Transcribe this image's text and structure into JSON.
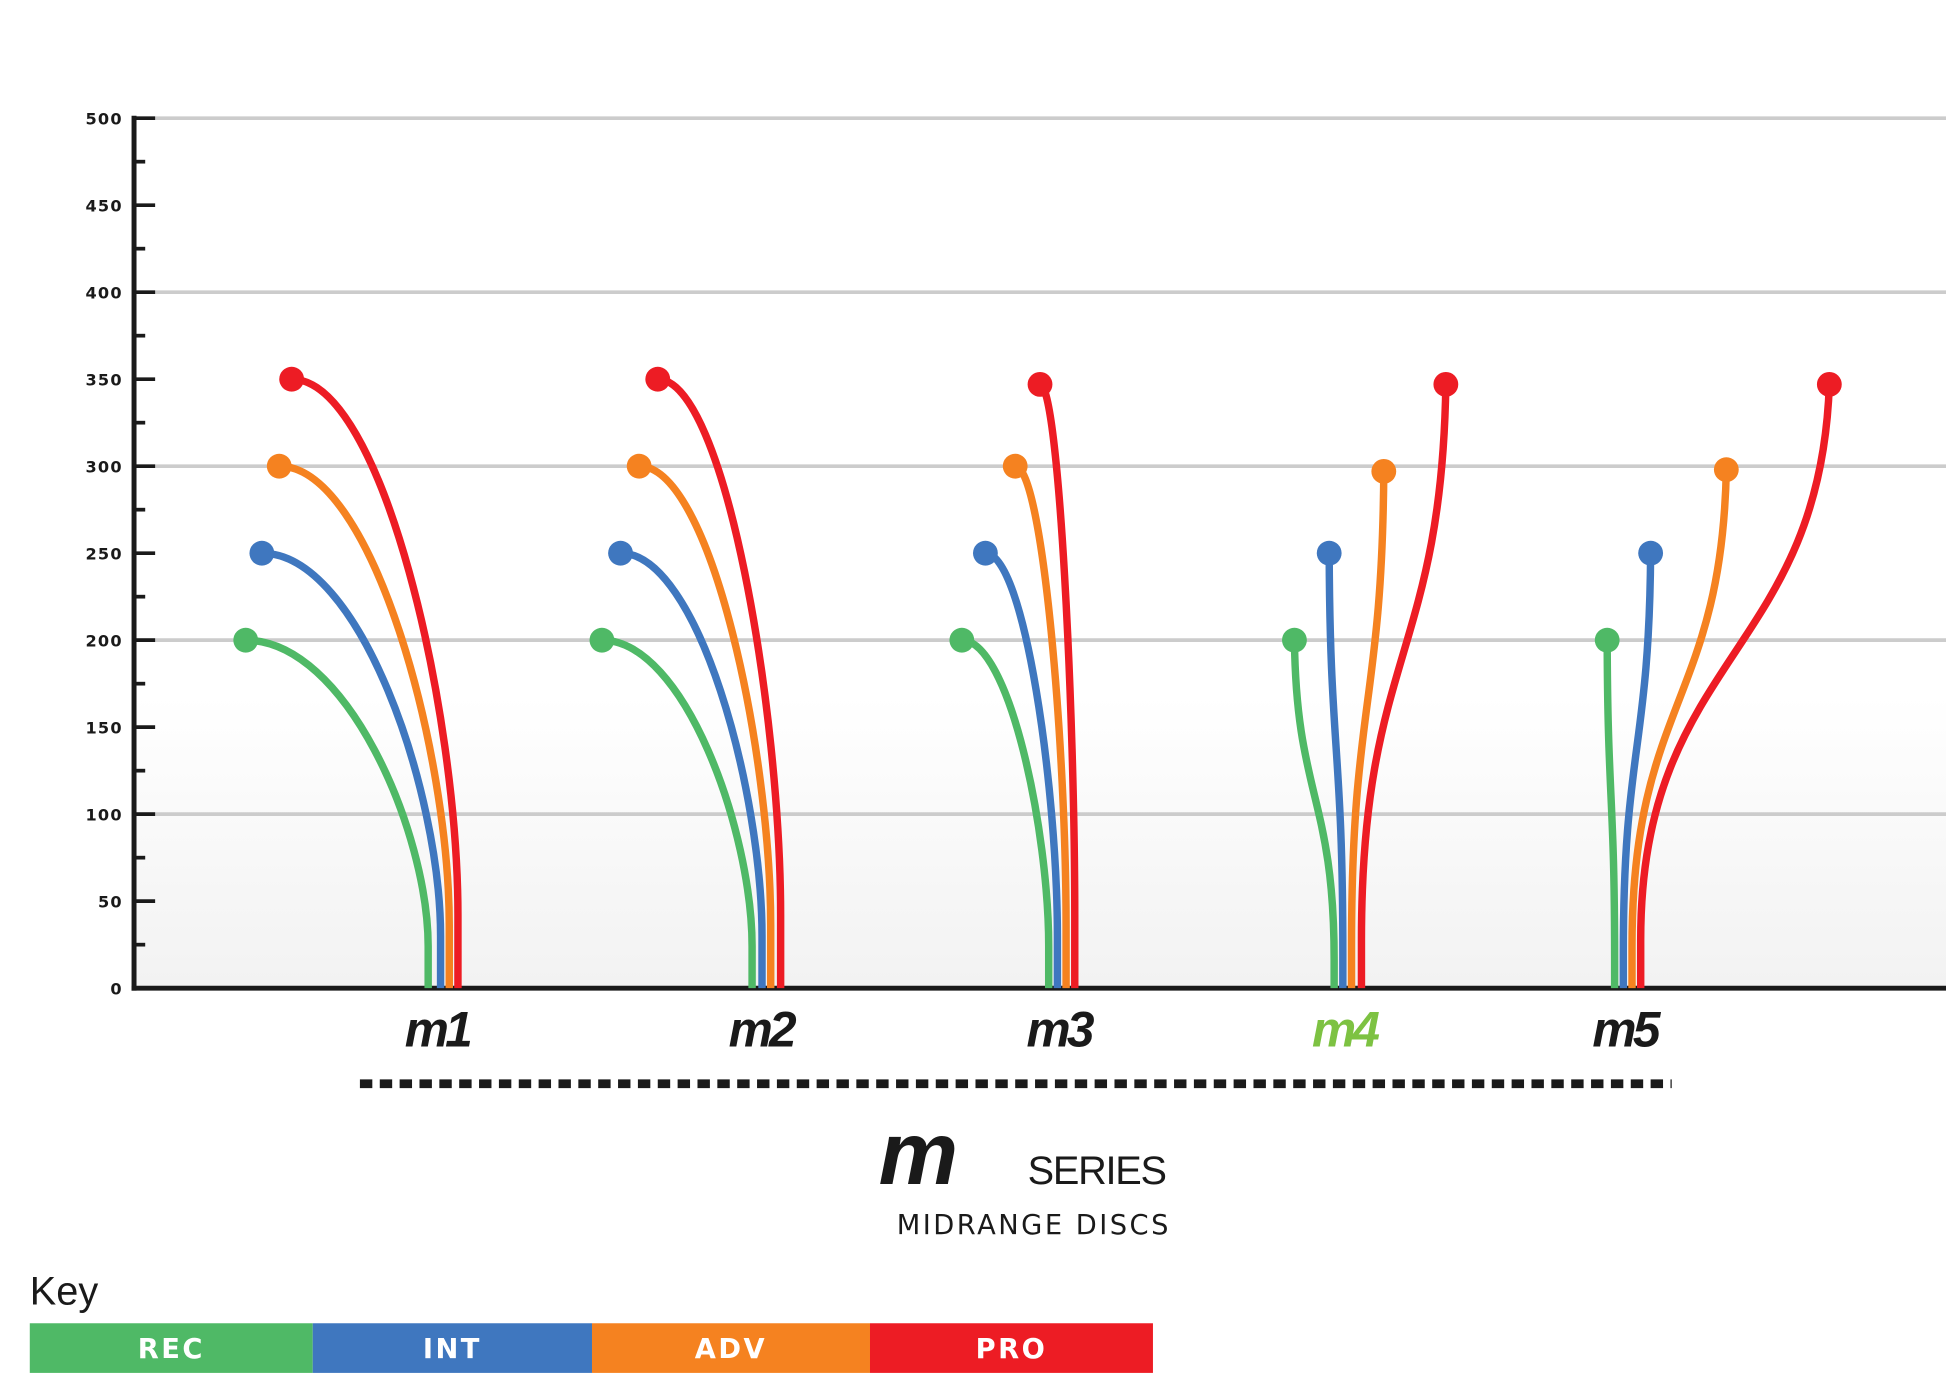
{
  "chart_data": {
    "type": "line",
    "title": "",
    "ylabel": "",
    "xlabel": "",
    "ylim": [
      0,
      500
    ],
    "y_ticks": [
      "0",
      "50",
      "100",
      "150",
      "200",
      "250",
      "300",
      "350",
      "400",
      "450",
      "500"
    ],
    "grid": true,
    "categories": [
      "m1",
      "m2",
      "m3",
      "m4",
      "m5"
    ],
    "category_colors": [
      "#1a1a1a",
      "#1a1a1a",
      "#1a1a1a",
      "#7dc242",
      "#1a1a1a"
    ],
    "series": [
      {
        "name": "REC",
        "color": "#4fb966",
        "values": [
          200,
          200,
          200,
          200,
          200
        ]
      },
      {
        "name": "INT",
        "color": "#3f77bf",
        "values": [
          250,
          250,
          250,
          250,
          250
        ]
      },
      {
        "name": "ADV",
        "color": "#f58220",
        "values": [
          300,
          300,
          300,
          297,
          298
        ]
      },
      {
        "name": "PRO",
        "color": "#ed1c24",
        "values": [
          350,
          350,
          347,
          347,
          347
        ]
      }
    ],
    "legend_placement": "bottom-left"
  },
  "branding": {
    "series_mark": "m",
    "series_word": "SERIES",
    "subtitle": "MIDRANGE DISCS"
  },
  "key": {
    "title": "Key",
    "items": [
      {
        "label": "REC",
        "color": "#4fb966"
      },
      {
        "label": "INT",
        "color": "#3f77bf"
      },
      {
        "label": "ADV",
        "color": "#f58220"
      },
      {
        "label": "PRO",
        "color": "#ed1c24"
      }
    ]
  }
}
